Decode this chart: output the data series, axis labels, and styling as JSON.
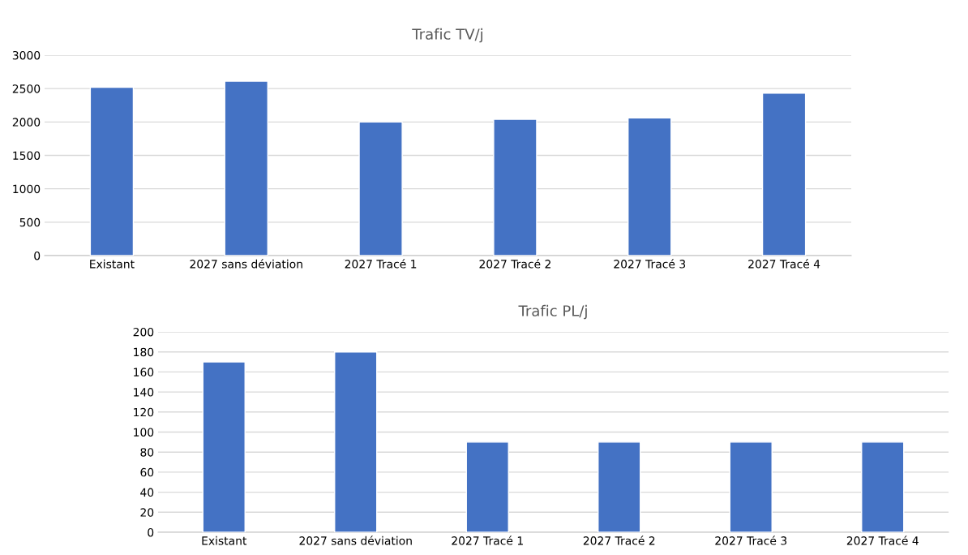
{
  "chart_data": [
    {
      "type": "bar",
      "title": "Trafic TV/j",
      "categories": [
        "Existant",
        "2027 sans déviation",
        "2027 Tracé 1",
        "2027 Tracé 2",
        "2027 Tracé 3",
        "2027 Tracé 4"
      ],
      "values": [
        2520,
        2610,
        2000,
        2040,
        2060,
        2430
      ],
      "color": "#4472c4",
      "ylim": [
        0,
        3000
      ],
      "yticks": [
        0,
        500,
        1000,
        1500,
        2000,
        2500,
        3000
      ],
      "grid": "y"
    },
    {
      "type": "bar",
      "title": "Trafic PL/j",
      "categories": [
        "Existant",
        "2027 sans déviation",
        "2027 Tracé 1",
        "2027 Tracé 2",
        "2027 Tracé 3",
        "2027 Tracé 4"
      ],
      "values": [
        170,
        180,
        90,
        90,
        90,
        90
      ],
      "color": "#4472c4",
      "ylim": [
        0,
        200
      ],
      "yticks": [
        0,
        20,
        40,
        60,
        80,
        100,
        120,
        140,
        160,
        180,
        200
      ],
      "grid": "y"
    }
  ]
}
